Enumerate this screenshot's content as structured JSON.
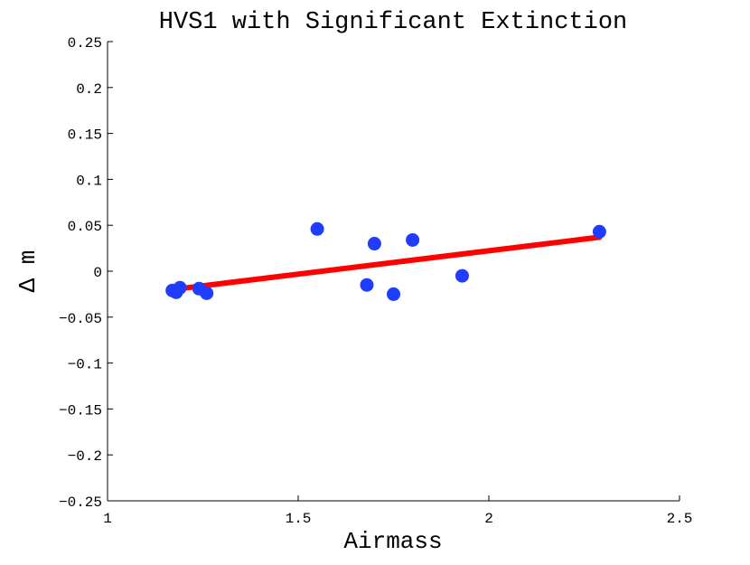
{
  "chart_data": {
    "type": "scatter",
    "title": "HVS1 with Significant Extinction",
    "xlabel": "Airmass",
    "ylabel": "Δ m",
    "xlim": [
      1,
      2.5
    ],
    "ylim": [
      -0.25,
      0.25
    ],
    "x_ticks": [
      "1",
      "1.5",
      "2",
      "2.5"
    ],
    "y_ticks": [
      "0.25",
      "0.2",
      "0.15",
      "0.1",
      "0.05",
      "0",
      "−0.05",
      "−0.1",
      "−0.15",
      "−0.2",
      "−0.25"
    ],
    "grid": false,
    "points": [
      {
        "x": 1.17,
        "y": -0.021
      },
      {
        "x": 1.18,
        "y": -0.023
      },
      {
        "x": 1.19,
        "y": -0.018
      },
      {
        "x": 1.24,
        "y": -0.019
      },
      {
        "x": 1.26,
        "y": -0.024
      },
      {
        "x": 1.55,
        "y": 0.046
      },
      {
        "x": 1.68,
        "y": -0.015
      },
      {
        "x": 1.7,
        "y": 0.03
      },
      {
        "x": 1.75,
        "y": -0.025
      },
      {
        "x": 1.8,
        "y": 0.034
      },
      {
        "x": 1.93,
        "y": -0.005
      },
      {
        "x": 2.29,
        "y": 0.043
      }
    ],
    "fit_line": {
      "x": [
        1.17,
        2.29
      ],
      "y": [
        -0.02,
        0.037
      ]
    },
    "colors": {
      "points": "#1f3cff",
      "fit_line": "#ff0000",
      "axes": "#000000"
    }
  }
}
